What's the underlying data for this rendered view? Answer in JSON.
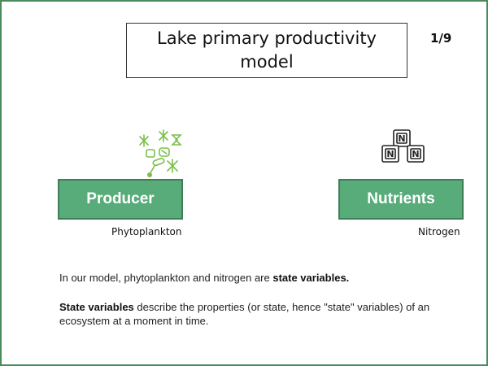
{
  "slide": {
    "title": "Lake primary productivity model",
    "page_indicator": "1/9",
    "frame_color": "#4a8a5c"
  },
  "producer": {
    "label": "Producer",
    "caption": "Phytoplankton",
    "icon": "phytoplankton-icon",
    "color": "#58ac79"
  },
  "nutrients": {
    "label": "Nutrients",
    "caption": "Nitrogen",
    "icon": "nitrogen-icon",
    "icon_letter": "N",
    "color": "#58ac79"
  },
  "text": {
    "p1_before": "In our model, phytoplankton and nitrogen are ",
    "p1_bold": "state variables.",
    "p2_bold": "State variables",
    "p2_after": " describe the properties (or state, hence \"state\" variables) of an ecosystem at a moment in time."
  }
}
